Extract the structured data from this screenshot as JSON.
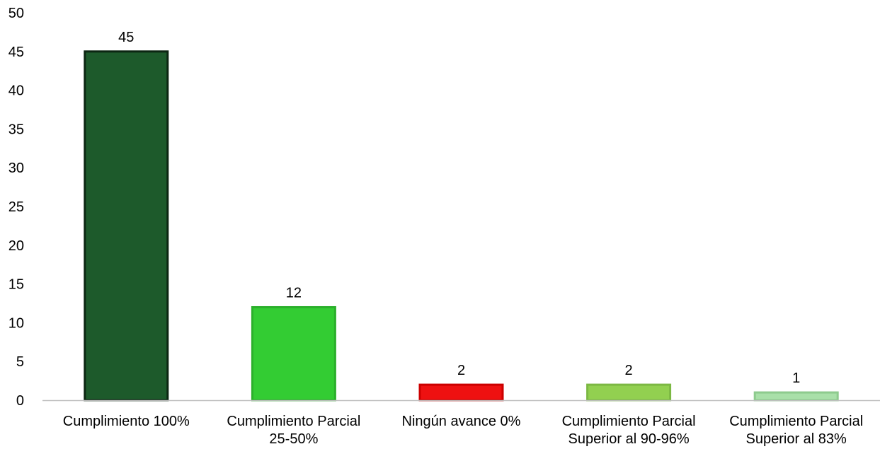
{
  "chart_data": {
    "type": "bar",
    "title": "",
    "xlabel": "",
    "ylabel": "",
    "ylim": [
      0,
      50
    ],
    "yticks": [
      0,
      5,
      10,
      15,
      20,
      25,
      30,
      35,
      40,
      45,
      50
    ],
    "grid": false,
    "legend": "none",
    "categories": [
      "Cumplimiento 100%",
      "Cumplimiento Parcial 25-50%",
      "Ningún avance 0%",
      "Cumplimiento Parcial Superior al 90-96%",
      "Cumplimiento Parcial Superior al 83%"
    ],
    "category_lines": [
      [
        "Cumplimiento 100%"
      ],
      [
        "Cumplimiento Parcial",
        "25-50%"
      ],
      [
        "Ningún avance 0%"
      ],
      [
        "Cumplimiento Parcial",
        "Superior al 90-96%"
      ],
      [
        "Cumplimiento Parcial",
        "Superior al 83%"
      ]
    ],
    "values": [
      45,
      12,
      2,
      2,
      1
    ],
    "data_labels": [
      "45",
      "12",
      "2",
      "2",
      "1"
    ],
    "colors": [
      "#1d5a2b",
      "#33cc33",
      "#ee1111",
      "#92d050",
      "#a9e0a9"
    ],
    "edge_colors": [
      "#0c2612",
      "#2bb02b",
      "#cc0000",
      "#7cb843",
      "#8ecb8e"
    ],
    "axis_color": "#bfbfbf"
  }
}
